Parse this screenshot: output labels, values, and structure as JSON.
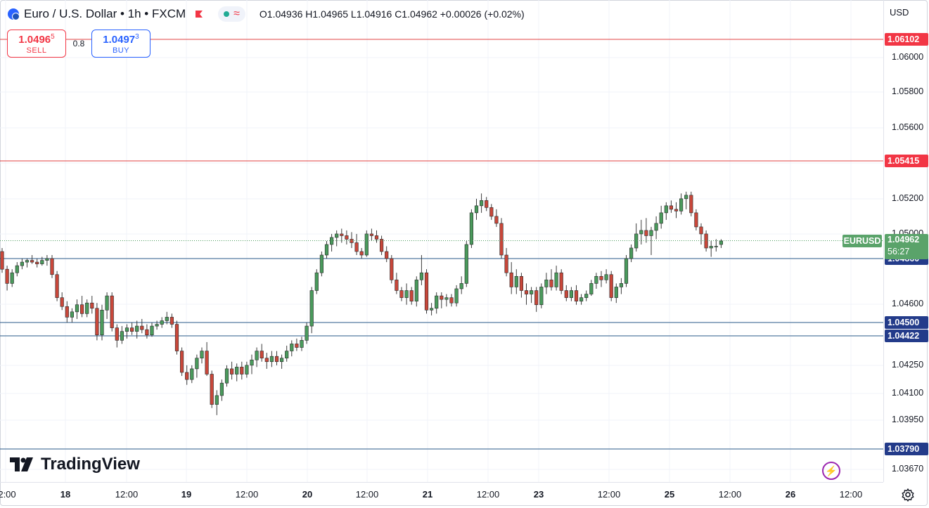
{
  "header": {
    "title": "Euro / U.S. Dollar • 1h • FXCM",
    "ohlc": "O1.04936 H1.04965 L1.04916 C1.04962 +0.00026 (+0.02%)"
  },
  "trade": {
    "sell_price_main": "1.0496",
    "sell_price_frac": "5",
    "sell_label": "SELL",
    "spread": "0.8",
    "buy_price_main": "1.0497",
    "buy_price_frac": "3",
    "buy_label": "BUY"
  },
  "currency": "USD",
  "logo_text": "TradingView",
  "symbol_tag": "EURUSD",
  "last_price": {
    "value": "1.04962",
    "countdown": "56:27"
  },
  "price_ticks": [
    "1.06000",
    "1.05800",
    "1.05600",
    "1.05200",
    "1.05000",
    "1.04600",
    "1.04250",
    "1.04100",
    "1.03950",
    "1.03670"
  ],
  "level_labels": [
    {
      "label": "1.06102",
      "color": "red"
    },
    {
      "label": "1.05415",
      "color": "red"
    },
    {
      "label": "1.04860",
      "color": "blue"
    },
    {
      "label": "1.04500",
      "color": "blue"
    },
    {
      "label": "1.04422",
      "color": "blue"
    },
    {
      "label": "1.03790",
      "color": "blue"
    }
  ],
  "time_labels": [
    {
      "text": "2:00",
      "bold": false
    },
    {
      "text": "18",
      "bold": true
    },
    {
      "text": "12:00",
      "bold": false
    },
    {
      "text": "19",
      "bold": true
    },
    {
      "text": "12:00",
      "bold": false
    },
    {
      "text": "20",
      "bold": true
    },
    {
      "text": "12:00",
      "bold": false
    },
    {
      "text": "21",
      "bold": true
    },
    {
      "text": "12:00",
      "bold": false
    },
    {
      "text": "23",
      "bold": true
    },
    {
      "text": "12:00",
      "bold": false
    },
    {
      "text": "25",
      "bold": true
    },
    {
      "text": "12:00",
      "bold": false
    },
    {
      "text": "26",
      "bold": true
    },
    {
      "text": "12:00",
      "bold": false
    }
  ],
  "colors": {
    "up": "#4a9a5c",
    "down": "#c8473a",
    "support_line": "#2a5a8a",
    "resistance_line": "#e04040"
  },
  "chart_data": {
    "type": "candlestick",
    "candles": [
      [
        1.049,
        1.0492,
        1.0478,
        1.048
      ],
      [
        1.048,
        1.0482,
        1.0468,
        1.0472
      ],
      [
        1.0472,
        1.048,
        1.047,
        1.0478
      ],
      [
        1.0478,
        1.0484,
        1.0476,
        1.0482
      ],
      [
        1.0482,
        1.0486,
        1.048,
        1.0484
      ],
      [
        1.0484,
        1.0486,
        1.0481,
        1.0485
      ],
      [
        1.0485,
        1.0488,
        1.0483,
        1.0484
      ],
      [
        1.0484,
        1.0486,
        1.0481,
        1.0483
      ],
      [
        1.0483,
        1.0487,
        1.0482,
        1.0485
      ],
      [
        1.0485,
        1.0488,
        1.0482,
        1.0486
      ],
      [
        1.0486,
        1.0488,
        1.0475,
        1.0477
      ],
      [
        1.0477,
        1.0479,
        1.0462,
        1.0464
      ],
      [
        1.0464,
        1.0467,
        1.0457,
        1.0459
      ],
      [
        1.0459,
        1.0462,
        1.045,
        1.0453
      ],
      [
        1.0453,
        1.0458,
        1.045,
        1.0456
      ],
      [
        1.0456,
        1.0463,
        1.0452,
        1.046
      ],
      [
        1.046,
        1.0465,
        1.0453,
        1.0455
      ],
      [
        1.0455,
        1.0463,
        1.0453,
        1.0461
      ],
      [
        1.0461,
        1.0465,
        1.0455,
        1.0458
      ],
      [
        1.0458,
        1.0461,
        1.044,
        1.0443
      ],
      [
        1.0443,
        1.046,
        1.044,
        1.0457
      ],
      [
        1.0457,
        1.0467,
        1.0452,
        1.0465
      ],
      [
        1.0465,
        1.0467,
        1.0445,
        1.0447
      ],
      [
        1.0447,
        1.0449,
        1.0436,
        1.044
      ],
      [
        1.044,
        1.0448,
        1.0438,
        1.0445
      ],
      [
        1.0445,
        1.0449,
        1.0441,
        1.0447
      ],
      [
        1.0447,
        1.045,
        1.0443,
        1.0445
      ],
      [
        1.0445,
        1.0451,
        1.0441,
        1.0448
      ],
      [
        1.0448,
        1.0452,
        1.0444,
        1.0446
      ],
      [
        1.0446,
        1.0449,
        1.0441,
        1.0443
      ],
      [
        1.0443,
        1.045,
        1.0442,
        1.0448
      ],
      [
        1.0448,
        1.0451,
        1.0446,
        1.0449
      ],
      [
        1.0449,
        1.0453,
        1.0447,
        1.0451
      ],
      [
        1.0451,
        1.0456,
        1.0449,
        1.0453
      ],
      [
        1.0453,
        1.0455,
        1.0447,
        1.0449
      ],
      [
        1.0449,
        1.0451,
        1.0432,
        1.0434
      ],
      [
        1.0434,
        1.0436,
        1.042,
        1.0422
      ],
      [
        1.0422,
        1.0426,
        1.0415,
        1.0418
      ],
      [
        1.0418,
        1.0426,
        1.0416,
        1.0424
      ],
      [
        1.0424,
        1.0432,
        1.0419,
        1.043
      ],
      [
        1.043,
        1.0436,
        1.0427,
        1.0434
      ],
      [
        1.0434,
        1.0439,
        1.042,
        1.0421
      ],
      [
        1.0421,
        1.0423,
        1.0402,
        1.0404
      ],
      [
        1.0404,
        1.0412,
        1.0398,
        1.0409
      ],
      [
        1.0409,
        1.0418,
        1.0406,
        1.0416
      ],
      [
        1.0416,
        1.0426,
        1.0414,
        1.0424
      ],
      [
        1.0424,
        1.0428,
        1.0418,
        1.0421
      ],
      [
        1.0421,
        1.0427,
        1.0417,
        1.0425
      ],
      [
        1.0425,
        1.0428,
        1.0418,
        1.0421
      ],
      [
        1.0421,
        1.0428,
        1.0419,
        1.0426
      ],
      [
        1.0426,
        1.0432,
        1.0421,
        1.0429
      ],
      [
        1.0429,
        1.0436,
        1.0425,
        1.0434
      ],
      [
        1.0434,
        1.0438,
        1.0428,
        1.043
      ],
      [
        1.043,
        1.0433,
        1.0424,
        1.0428
      ],
      [
        1.0428,
        1.0434,
        1.0425,
        1.0431
      ],
      [
        1.0431,
        1.0434,
        1.0426,
        1.0428
      ],
      [
        1.0428,
        1.0432,
        1.0424,
        1.043
      ],
      [
        1.043,
        1.0437,
        1.0428,
        1.0434
      ],
      [
        1.0434,
        1.044,
        1.0431,
        1.0438
      ],
      [
        1.0438,
        1.0441,
        1.0434,
        1.0436
      ],
      [
        1.0436,
        1.0442,
        1.0434,
        1.044
      ],
      [
        1.044,
        1.045,
        1.0438,
        1.0448
      ],
      [
        1.0448,
        1.047,
        1.0444,
        1.0468
      ],
      [
        1.0468,
        1.048,
        1.0466,
        1.0478
      ],
      [
        1.0478,
        1.049,
        1.0476,
        1.0488
      ],
      [
        1.0488,
        1.0496,
        1.0486,
        1.0494
      ],
      [
        1.0494,
        1.05,
        1.049,
        1.0498
      ],
      [
        1.0498,
        1.0502,
        1.0493,
        1.05
      ],
      [
        1.05,
        1.0503,
        1.0495,
        1.0499
      ],
      [
        1.0499,
        1.0502,
        1.0494,
        1.0497
      ],
      [
        1.0497,
        1.0501,
        1.0492,
        1.0495
      ],
      [
        1.0495,
        1.05,
        1.0488,
        1.049
      ],
      [
        1.049,
        1.0492,
        1.0486,
        1.0488
      ],
      [
        1.0488,
        1.0502,
        1.0487,
        1.05
      ],
      [
        1.05,
        1.0503,
        1.0496,
        1.0499
      ],
      [
        1.0499,
        1.0502,
        1.0495,
        1.0497
      ],
      [
        1.0497,
        1.0499,
        1.0488,
        1.049
      ],
      [
        1.049,
        1.0493,
        1.0484,
        1.0486
      ],
      [
        1.0486,
        1.0488,
        1.0472,
        1.0474
      ],
      [
        1.0474,
        1.0478,
        1.0466,
        1.0468
      ],
      [
        1.0468,
        1.047,
        1.0462,
        1.0464
      ],
      [
        1.0464,
        1.0472,
        1.046,
        1.0468
      ],
      [
        1.0468,
        1.047,
        1.046,
        1.0462
      ],
      [
        1.0462,
        1.0476,
        1.0459,
        1.0474
      ],
      [
        1.0474,
        1.0488,
        1.0471,
        1.0478
      ],
      [
        1.0478,
        1.048,
        1.0455,
        1.0457
      ],
      [
        1.0457,
        1.0461,
        1.0454,
        1.0458
      ],
      [
        1.0458,
        1.0467,
        1.0455,
        1.0465
      ],
      [
        1.0465,
        1.0467,
        1.0458,
        1.0463
      ],
      [
        1.0463,
        1.0466,
        1.0459,
        1.0464
      ],
      [
        1.0464,
        1.0466,
        1.0459,
        1.0461
      ],
      [
        1.0461,
        1.0471,
        1.0459,
        1.0469
      ],
      [
        1.0469,
        1.0476,
        1.0466,
        1.0472
      ],
      [
        1.0472,
        1.0496,
        1.047,
        1.0494
      ],
      [
        1.0494,
        1.0514,
        1.0492,
        1.0512
      ],
      [
        1.0512,
        1.052,
        1.0508,
        1.0516
      ],
      [
        1.0516,
        1.0523,
        1.0512,
        1.0519
      ],
      [
        1.0519,
        1.0521,
        1.0513,
        1.0515
      ],
      [
        1.0515,
        1.0517,
        1.0508,
        1.051
      ],
      [
        1.051,
        1.0514,
        1.0504,
        1.0506
      ],
      [
        1.0506,
        1.0509,
        1.0486,
        1.0488
      ],
      [
        1.0488,
        1.0492,
        1.0476,
        1.0478
      ],
      [
        1.0478,
        1.0484,
        1.0466,
        1.047
      ],
      [
        1.047,
        1.048,
        1.0466,
        1.0476
      ],
      [
        1.0476,
        1.0478,
        1.0464,
        1.0468
      ],
      [
        1.0468,
        1.0472,
        1.046,
        1.0466
      ],
      [
        1.0466,
        1.047,
        1.0461,
        1.0468
      ],
      [
        1.0468,
        1.047,
        1.0456,
        1.046
      ],
      [
        1.046,
        1.0472,
        1.0458,
        1.047
      ],
      [
        1.047,
        1.0478,
        1.0466,
        1.0474
      ],
      [
        1.0474,
        1.048,
        1.0468,
        1.047
      ],
      [
        1.047,
        1.0482,
        1.0468,
        1.0478
      ],
      [
        1.0478,
        1.048,
        1.0466,
        1.0468
      ],
      [
        1.0468,
        1.0471,
        1.0462,
        1.0464
      ],
      [
        1.0464,
        1.047,
        1.0462,
        1.0468
      ],
      [
        1.0468,
        1.0471,
        1.046,
        1.0462
      ],
      [
        1.0462,
        1.0466,
        1.046,
        1.0464
      ],
      [
        1.0464,
        1.0468,
        1.0462,
        1.0466
      ],
      [
        1.0466,
        1.0474,
        1.0465,
        1.0472
      ],
      [
        1.0472,
        1.0478,
        1.0469,
        1.0476
      ],
      [
        1.0476,
        1.0479,
        1.047,
        1.0474
      ],
      [
        1.0474,
        1.048,
        1.0472,
        1.0477
      ],
      [
        1.0477,
        1.0479,
        1.0462,
        1.0464
      ],
      [
        1.0464,
        1.0472,
        1.0461,
        1.047
      ],
      [
        1.047,
        1.0475,
        1.0466,
        1.0472
      ],
      [
        1.0472,
        1.0488,
        1.047,
        1.0486
      ],
      [
        1.0486,
        1.0494,
        1.0484,
        1.0492
      ],
      [
        1.0492,
        1.0506,
        1.049,
        1.05
      ],
      [
        1.05,
        1.0508,
        1.0494,
        1.0502
      ],
      [
        1.0502,
        1.0509,
        1.0495,
        1.0499
      ],
      [
        1.0499,
        1.0504,
        1.0488,
        1.0502
      ],
      [
        1.0502,
        1.051,
        1.0497,
        1.0506
      ],
      [
        1.0506,
        1.0516,
        1.0503,
        1.0512
      ],
      [
        1.0512,
        1.0518,
        1.0508,
        1.0516
      ],
      [
        1.0516,
        1.0519,
        1.0512,
        1.0514
      ],
      [
        1.0514,
        1.0518,
        1.0509,
        1.0513
      ],
      [
        1.0513,
        1.0523,
        1.0511,
        1.052
      ],
      [
        1.052,
        1.0524,
        1.0514,
        1.0522
      ],
      [
        1.0522,
        1.0524,
        1.051,
        1.0512
      ],
      [
        1.0512,
        1.0514,
        1.0502,
        1.0504
      ],
      [
        1.0504,
        1.0506,
        1.0494,
        1.05
      ],
      [
        1.05,
        1.0502,
        1.049,
        1.0492
      ],
      [
        1.0492,
        1.0496,
        1.0487,
        1.0493
      ],
      [
        1.0493,
        1.0497,
        1.049,
        1.0493
      ],
      [
        1.0494,
        1.0497,
        1.0492,
        1.0496
      ]
    ],
    "levels": [
      1.06102,
      1.05415,
      1.0486,
      1.045,
      1.04422,
      1.0379
    ],
    "last_price": 1.04962
  }
}
